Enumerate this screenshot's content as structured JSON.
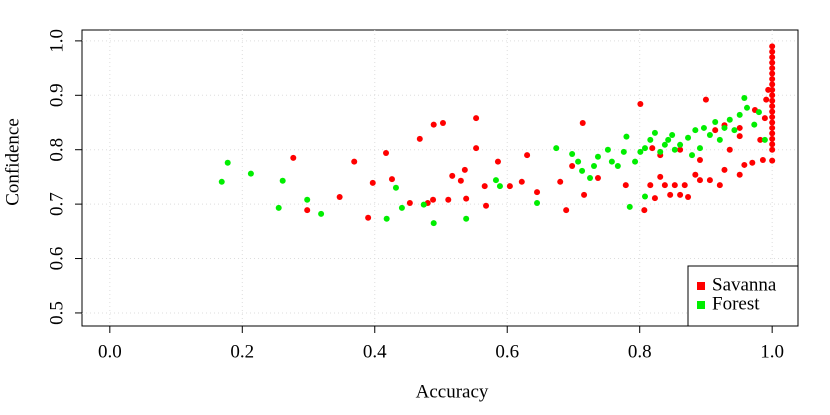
{
  "chart_data": {
    "type": "scatter",
    "x_label": "Accuracy",
    "y_label": "Confidence",
    "xlim": [
      -0.042,
      1.039
    ],
    "ylim": [
      0.476,
      1.02
    ],
    "xticks": [
      {
        "value": 0,
        "label": "0.0"
      },
      0.2,
      0.4,
      0.6,
      0.8,
      {
        "value": 1,
        "label": "1.0"
      }
    ],
    "yticks": [
      0.5,
      0.6,
      0.7,
      0.8,
      0.9,
      {
        "value": 1,
        "label": "1.0"
      }
    ],
    "grid": true,
    "legend": "bottomright",
    "series": [
      {
        "name": "Savanna",
        "color": "#ff0000",
        "x": [
          0.277,
          0.298,
          0.347,
          0.369,
          0.39,
          0.397,
          0.417,
          0.426,
          0.453,
          0.468,
          0.48,
          0.488,
          0.489,
          0.503,
          0.511,
          0.517,
          0.53,
          0.536,
          0.538,
          0.553,
          0.553,
          0.566,
          0.568,
          0.586,
          0.604,
          0.622,
          0.63,
          0.645,
          0.68,
          0.689,
          0.698,
          0.714,
          0.716,
          0.737,
          0.779,
          0.801,
          0.807,
          0.816,
          0.819,
          0.823,
          0.831,
          0.838,
          0.846,
          0.853,
          0.861,
          0.868,
          0.873,
          0.884,
          0.891,
          0.9,
          0.906,
          0.921,
          0.928,
          0.936,
          0.951,
          0.958,
          0.97,
          0.982,
          0.986,
          0.989,
          0.991,
          0.994,
          0.831,
          0.861,
          0.891,
          0.914,
          0.928,
          0.951,
          0.974,
          0.951,
          1,
          1,
          1,
          1,
          1,
          1,
          1,
          1,
          1,
          1,
          1,
          1,
          1,
          1,
          1,
          1,
          1,
          1,
          1,
          1,
          1
        ],
        "y": [
          0.785,
          0.689,
          0.713,
          0.778,
          0.675,
          0.739,
          0.794,
          0.746,
          0.702,
          0.82,
          0.702,
          0.708,
          0.846,
          0.849,
          0.708,
          0.752,
          0.743,
          0.763,
          0.71,
          0.858,
          0.803,
          0.733,
          0.697,
          0.778,
          0.733,
          0.741,
          0.79,
          0.722,
          0.741,
          0.689,
          0.77,
          0.849,
          0.717,
          0.748,
          0.735,
          0.884,
          0.689,
          0.735,
          0.803,
          0.711,
          0.75,
          0.735,
          0.717,
          0.735,
          0.717,
          0.735,
          0.713,
          0.754,
          0.744,
          0.892,
          0.744,
          0.735,
          0.763,
          0.8,
          0.754,
          0.772,
          0.776,
          0.818,
          0.781,
          0.858,
          0.892,
          0.91,
          0.79,
          0.8,
          0.781,
          0.836,
          0.845,
          0.825,
          0.873,
          0.84,
          0.99,
          0.98,
          0.97,
          0.96,
          0.95,
          0.94,
          0.93,
          0.92,
          0.91,
          0.9,
          0.89,
          0.88,
          0.87,
          0.86,
          0.85,
          0.84,
          0.83,
          0.82,
          0.81,
          0.8,
          0.78
        ]
      },
      {
        "name": "Forest",
        "color": "#00ee00",
        "x": [
          0.169,
          0.178,
          0.213,
          0.255,
          0.261,
          0.298,
          0.319,
          0.418,
          0.432,
          0.441,
          0.474,
          0.489,
          0.538,
          0.583,
          0.589,
          0.645,
          0.674,
          0.698,
          0.707,
          0.713,
          0.725,
          0.731,
          0.737,
          0.752,
          0.758,
          0.767,
          0.776,
          0.78,
          0.785,
          0.793,
          0.801,
          0.808,
          0.816,
          0.823,
          0.831,
          0.838,
          0.843,
          0.849,
          0.853,
          0.861,
          0.873,
          0.879,
          0.884,
          0.891,
          0.897,
          0.906,
          0.914,
          0.921,
          0.928,
          0.936,
          0.943,
          0.951,
          0.958,
          0.962,
          0.973,
          0.98,
          0.989,
          0.808
        ],
        "y": [
          0.741,
          0.776,
          0.756,
          0.693,
          0.743,
          0.708,
          0.682,
          0.673,
          0.73,
          0.693,
          0.699,
          0.665,
          0.673,
          0.744,
          0.733,
          0.702,
          0.803,
          0.792,
          0.778,
          0.761,
          0.748,
          0.77,
          0.787,
          0.8,
          0.778,
          0.77,
          0.796,
          0.824,
          0.695,
          0.778,
          0.796,
          0.803,
          0.818,
          0.831,
          0.796,
          0.809,
          0.818,
          0.827,
          0.8,
          0.809,
          0.822,
          0.79,
          0.836,
          0.803,
          0.84,
          0.827,
          0.851,
          0.818,
          0.84,
          0.855,
          0.836,
          0.864,
          0.895,
          0.877,
          0.846,
          0.869,
          0.818,
          0.714
        ]
      }
    ]
  }
}
